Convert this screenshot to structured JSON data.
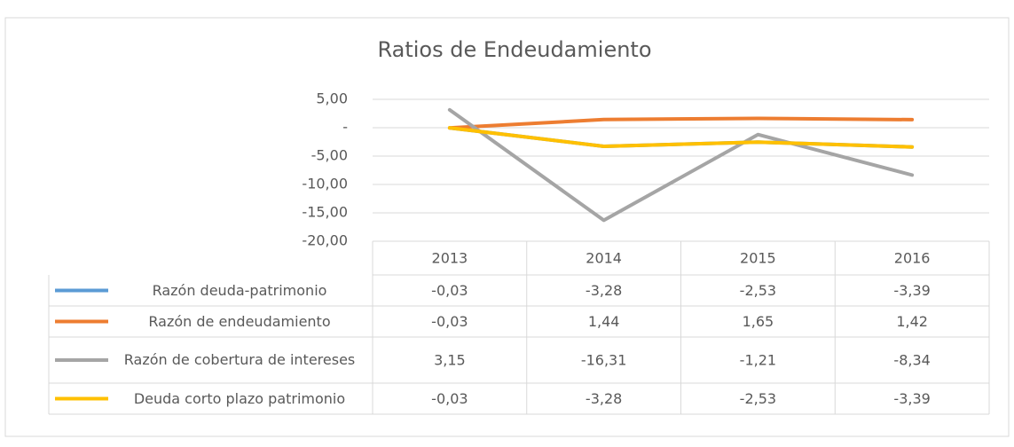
{
  "chart_data": {
    "type": "line",
    "title": "Ratios de Endeudamiento",
    "categories": [
      "2013",
      "2014",
      "2015",
      "2016"
    ],
    "ylim": [
      -20,
      5
    ],
    "yticks": [
      {
        "value": 5,
        "label": "5,00"
      },
      {
        "value": 0,
        "label": "-"
      },
      {
        "value": -5,
        "label": "-5,00"
      },
      {
        "value": -10,
        "label": "-10,00"
      },
      {
        "value": -15,
        "label": "-15,00"
      },
      {
        "value": -20,
        "label": "-20,00"
      }
    ],
    "grid": true,
    "series": [
      {
        "name": "Razón deuda-patrimonio",
        "color": "#5b9bd5",
        "values": [
          -0.03,
          -3.28,
          -2.53,
          -3.39
        ],
        "value_labels": [
          "-0,03",
          "-3,28",
          "-2,53",
          "-3,39"
        ]
      },
      {
        "name": "Razón de endeudamiento",
        "color": "#ed7d31",
        "values": [
          -0.03,
          1.44,
          1.65,
          1.42
        ],
        "value_labels": [
          "-0,03",
          "1,44",
          "1,65",
          "1,42"
        ]
      },
      {
        "name": "Razón de cobertura de intereses",
        "color": "#a5a5a5",
        "values": [
          3.15,
          -16.31,
          -1.21,
          -8.34
        ],
        "value_labels": [
          "3,15",
          "-16,31",
          "-1,21",
          "-8,34"
        ]
      },
      {
        "name": "Deuda corto plazo patrimonio",
        "color": "#ffc000",
        "values": [
          -0.03,
          -3.28,
          -2.53,
          -3.39
        ],
        "value_labels": [
          "-0,03",
          "-3,28",
          "-2,53",
          "-3,39"
        ]
      }
    ]
  }
}
